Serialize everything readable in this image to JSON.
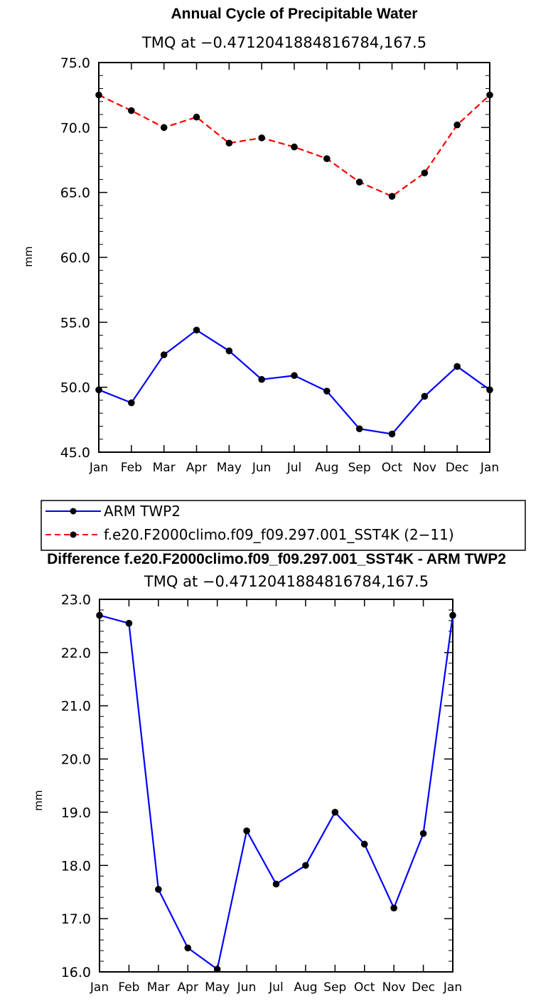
{
  "chart_data": [
    {
      "type": "line",
      "title": "Annual Cycle of Precipitable Water",
      "subtitle": "TMQ at −0.4712041884816784,167.5",
      "ylabel": "mm",
      "ylim": [
        45.0,
        75.0
      ],
      "yticks": [
        "45.0",
        "50.0",
        "55.0",
        "60.0",
        "65.0",
        "70.0",
        "75.0"
      ],
      "categories": [
        "Jan",
        "Feb",
        "Mar",
        "Apr",
        "May",
        "Jun",
        "Jul",
        "Aug",
        "Sep",
        "Oct",
        "Nov",
        "Dec",
        "Jan"
      ],
      "series": [
        {
          "name": "ARM TWP2",
          "color": "#0000ff",
          "dash": "solid",
          "values": [
            49.8,
            48.8,
            52.5,
            54.4,
            52.8,
            50.6,
            50.9,
            49.7,
            46.8,
            46.4,
            49.3,
            51.6,
            49.8
          ]
        },
        {
          "name": "f.e20.F2000climo.f09_f09.297.001_SST4K (2−11)",
          "color": "#ff0000",
          "dash": "dashed",
          "values": [
            72.5,
            71.3,
            70.0,
            70.8,
            68.8,
            69.2,
            68.5,
            67.6,
            65.8,
            64.7,
            66.5,
            70.2,
            72.5
          ]
        }
      ],
      "legend": "below"
    },
    {
      "type": "line",
      "title": "Difference f.e20.F2000climo.f09_f09.297.001_SST4K - ARM TWP2",
      "subtitle": "TMQ at −0.4712041884816784,167.5",
      "ylabel": "mm",
      "ylim": [
        16.0,
        23.0
      ],
      "yticks": [
        "16.0",
        "17.0",
        "18.0",
        "19.0",
        "20.0",
        "21.0",
        "22.0",
        "23.0"
      ],
      "categories": [
        "Jan",
        "Feb",
        "Mar",
        "Apr",
        "May",
        "Jun",
        "Jul",
        "Aug",
        "Sep",
        "Oct",
        "Nov",
        "Dec",
        "Jan"
      ],
      "series": [
        {
          "color": "#0000ff",
          "dash": "solid",
          "values": [
            22.7,
            22.55,
            17.55,
            16.45,
            16.05,
            18.65,
            17.65,
            18.0,
            19.0,
            18.4,
            17.2,
            18.6,
            22.7
          ]
        }
      ]
    }
  ]
}
